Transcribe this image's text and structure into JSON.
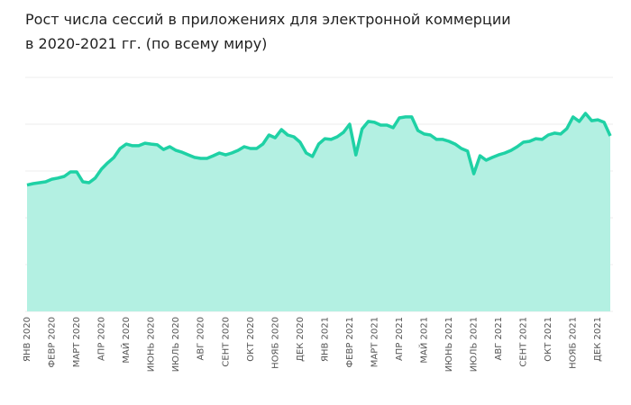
{
  "chart_data": {
    "type": "area",
    "title": "Рост числа сессий в приложениях для электронной коммерции\nв 2020-2021 гг. (по всему миру)",
    "categories": [
      "ЯНВ 2020",
      null,
      null,
      null,
      "ФЕВР 2020",
      null,
      null,
      null,
      "МАРТ 2020",
      null,
      null,
      null,
      "АПР 2020",
      null,
      null,
      null,
      "МАЙ 2020",
      null,
      null,
      null,
      "ИЮНЬ 2020",
      null,
      null,
      null,
      "ИЮЛЬ 2020",
      null,
      null,
      null,
      "АВГ 2020",
      null,
      null,
      null,
      "СЕНТ 2020",
      null,
      null,
      null,
      "ОКТ 2020",
      null,
      null,
      null,
      "НОЯБ 2020",
      null,
      null,
      null,
      "ДЕК 2020",
      null,
      null,
      null,
      "ЯНВ 2021",
      null,
      null,
      null,
      "ФЕВР 2021",
      null,
      null,
      null,
      "МАРТ 2021",
      null,
      null,
      null,
      "АПР 2021",
      null,
      null,
      null,
      "МАЙ 2021",
      null,
      null,
      null,
      "ИЮНЬ 2021",
      null,
      null,
      null,
      "ИЮЛЬ 2021",
      null,
      null,
      null,
      "АВГ 2021",
      null,
      null,
      null,
      "СЕНТ 2021",
      null,
      null,
      null,
      "ОКТ 2021",
      null,
      null,
      null,
      "НОЯБ 2021",
      null,
      null,
      null,
      "ДЕК 2021",
      null,
      null
    ],
    "values": [
      54,
      54.6,
      55,
      55.4,
      56.5,
      57,
      57.7,
      59.6,
      59.6,
      55.4,
      55,
      57,
      60.8,
      63.5,
      65.8,
      69.6,
      71.5,
      70.8,
      70.8,
      71.9,
      71.5,
      71.2,
      69.2,
      70.4,
      68.8,
      68,
      66.9,
      65.8,
      65.4,
      65.4,
      66.5,
      67.7,
      66.9,
      67.7,
      68.8,
      70.4,
      69.6,
      69.6,
      71.5,
      75.4,
      74.2,
      77.7,
      75.4,
      74.6,
      72.3,
      67.7,
      66.2,
      71.5,
      73.8,
      73.5,
      74.6,
      76.5,
      80,
      66.9,
      78,
      81.2,
      80.8,
      79.6,
      79.6,
      78.5,
      82.7,
      83.1,
      83.1,
      77.3,
      75.8,
      75.4,
      73.5,
      73.5,
      72.7,
      71.5,
      69.6,
      68.5,
      58.8,
      66.5,
      64.6,
      65.8,
      66.9,
      67.7,
      68.8,
      70.4,
      72.3,
      72.7,
      73.8,
      73.5,
      75.4,
      76.2,
      75.8,
      78.1,
      83.1,
      81.2,
      84.6,
      81.5,
      81.9,
      80.8,
      75
    ],
    "ylim": [
      0,
      100
    ],
    "color": "#1fd1a5",
    "fill": "#b3f0e2",
    "grid": true
  }
}
